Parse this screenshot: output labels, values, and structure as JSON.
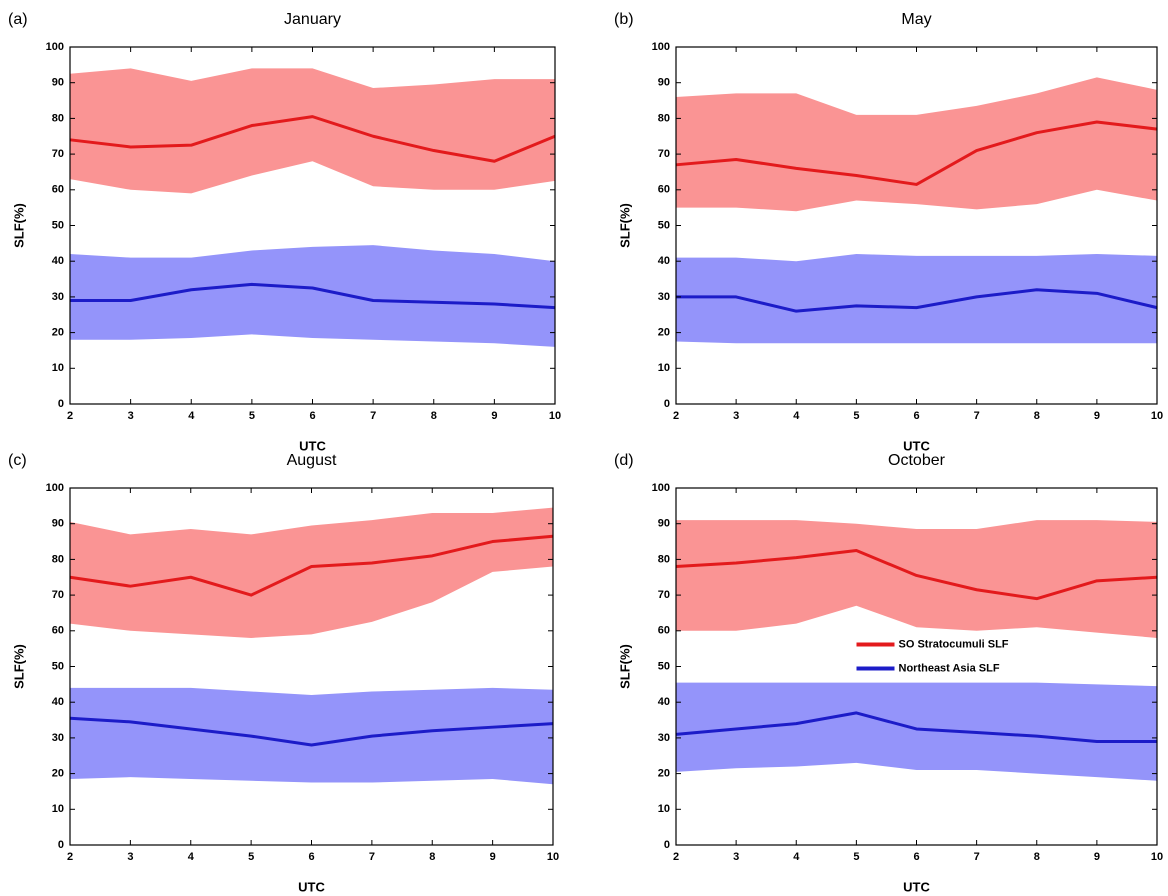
{
  "chart_data": [
    {
      "type": "line",
      "label": "(a)",
      "title": "January",
      "xlabel": "UTC",
      "ylabel": "SLF(%)",
      "x": [
        2,
        3,
        4,
        5,
        6,
        7,
        8,
        9,
        10
      ],
      "xlim": [
        2,
        10
      ],
      "xticks": [
        2,
        3,
        4,
        5,
        6,
        7,
        8,
        9,
        10
      ],
      "ylim": [
        0,
        100
      ],
      "yticks": [
        0,
        10,
        20,
        30,
        40,
        50,
        60,
        70,
        80,
        90,
        100
      ],
      "series": [
        {
          "color": "#e31a1c",
          "band_color": "#fa9494",
          "values": [
            74,
            72,
            72.5,
            78,
            80.5,
            75,
            71,
            68,
            75
          ],
          "upper": [
            92.5,
            94,
            90.5,
            94,
            94,
            88.5,
            89.5,
            91,
            91
          ],
          "lower": [
            63,
            60,
            59,
            64,
            68,
            61,
            60,
            60,
            62.5
          ]
        },
        {
          "color": "#1c1cc8",
          "band_color": "#9494fa",
          "values": [
            29,
            29,
            32,
            33.5,
            32.5,
            29,
            28.5,
            28,
            27
          ],
          "upper": [
            42,
            41,
            41,
            43,
            44,
            44.5,
            43,
            42,
            40
          ],
          "lower": [
            18,
            18,
            18.5,
            19.5,
            18.5,
            18,
            17.5,
            17,
            16
          ]
        }
      ]
    },
    {
      "type": "line",
      "label": "(b)",
      "title": "May",
      "xlabel": "UTC",
      "ylabel": "SLF(%)",
      "x": [
        2,
        3,
        4,
        5,
        6,
        7,
        8,
        9,
        10
      ],
      "xlim": [
        2,
        10
      ],
      "xticks": [
        2,
        3,
        4,
        5,
        6,
        7,
        8,
        9,
        10
      ],
      "ylim": [
        0,
        100
      ],
      "yticks": [
        0,
        10,
        20,
        30,
        40,
        50,
        60,
        70,
        80,
        90,
        100
      ],
      "series": [
        {
          "color": "#e31a1c",
          "band_color": "#fa9494",
          "values": [
            67,
            68.5,
            66,
            64,
            61.5,
            71,
            76,
            79,
            77
          ],
          "upper": [
            86,
            87,
            87,
            81,
            81,
            83.5,
            87,
            91.5,
            88
          ],
          "lower": [
            55,
            55,
            54,
            57,
            56,
            54.5,
            56,
            60,
            57
          ]
        },
        {
          "color": "#1c1cc8",
          "band_color": "#9494fa",
          "values": [
            30,
            30,
            26,
            27.5,
            27,
            30,
            32,
            31,
            27
          ],
          "upper": [
            41,
            41,
            40,
            42,
            41.5,
            41.5,
            41.5,
            42,
            41.5
          ],
          "lower": [
            17.5,
            17,
            17,
            17,
            17,
            17,
            17,
            17,
            17
          ]
        }
      ]
    },
    {
      "type": "line",
      "label": "(c)",
      "title": "August",
      "xlabel": "UTC",
      "ylabel": "SLF(%)",
      "x": [
        2,
        3,
        4,
        5,
        6,
        7,
        8,
        9,
        10
      ],
      "xlim": [
        2,
        10
      ],
      "xticks": [
        2,
        3,
        4,
        5,
        6,
        7,
        8,
        9,
        10
      ],
      "ylim": [
        0,
        100
      ],
      "yticks": [
        0,
        10,
        20,
        30,
        40,
        50,
        60,
        70,
        80,
        90,
        100
      ],
      "series": [
        {
          "color": "#e31a1c",
          "band_color": "#fa9494",
          "values": [
            75,
            72.5,
            75,
            70,
            78,
            79,
            81,
            85,
            86.5
          ],
          "upper": [
            90.5,
            87,
            88.5,
            87,
            89.5,
            91,
            93,
            93,
            94.5
          ],
          "lower": [
            62,
            60,
            59,
            58,
            59,
            62.5,
            68,
            76.5,
            78
          ]
        },
        {
          "color": "#1c1cc8",
          "band_color": "#9494fa",
          "values": [
            35.5,
            34.5,
            32.5,
            30.5,
            28,
            30.5,
            32,
            33,
            34
          ],
          "upper": [
            44,
            44,
            44,
            43,
            42,
            43,
            43.5,
            44,
            43.5
          ],
          "lower": [
            18.5,
            19,
            18.5,
            18,
            17.5,
            17.5,
            18,
            18.5,
            17
          ]
        }
      ]
    },
    {
      "type": "line",
      "label": "(d)",
      "title": "October",
      "xlabel": "UTC",
      "ylabel": "SLF(%)",
      "x": [
        2,
        3,
        4,
        5,
        6,
        7,
        8,
        9,
        10
      ],
      "xlim": [
        2,
        10
      ],
      "xticks": [
        2,
        3,
        4,
        5,
        6,
        7,
        8,
        9,
        10
      ],
      "ylim": [
        0,
        100
      ],
      "yticks": [
        0,
        10,
        20,
        30,
        40,
        50,
        60,
        70,
        80,
        90,
        100
      ],
      "legend": "center",
      "series": [
        {
          "name": "SO Stratocumuli SLF",
          "color": "#e31a1c",
          "band_color": "#fa9494",
          "values": [
            78,
            79,
            80.5,
            82.5,
            75.5,
            71.5,
            69,
            74,
            75
          ],
          "upper": [
            91,
            91,
            91,
            90,
            88.5,
            88.5,
            91,
            91,
            90.5
          ],
          "lower": [
            60,
            60,
            62,
            67,
            61,
            60,
            61,
            59.5,
            58
          ]
        },
        {
          "name": "Northeast Asia  SLF",
          "color": "#1c1cc8",
          "band_color": "#9494fa",
          "values": [
            31,
            32.5,
            34,
            37,
            32.5,
            31.5,
            30.5,
            29,
            29
          ],
          "upper": [
            45.5,
            45.5,
            45.5,
            45.5,
            45.5,
            45.5,
            45.5,
            45,
            44.5
          ],
          "lower": [
            20.5,
            21.5,
            22,
            23,
            21,
            21,
            20,
            19,
            18
          ]
        }
      ]
    }
  ]
}
